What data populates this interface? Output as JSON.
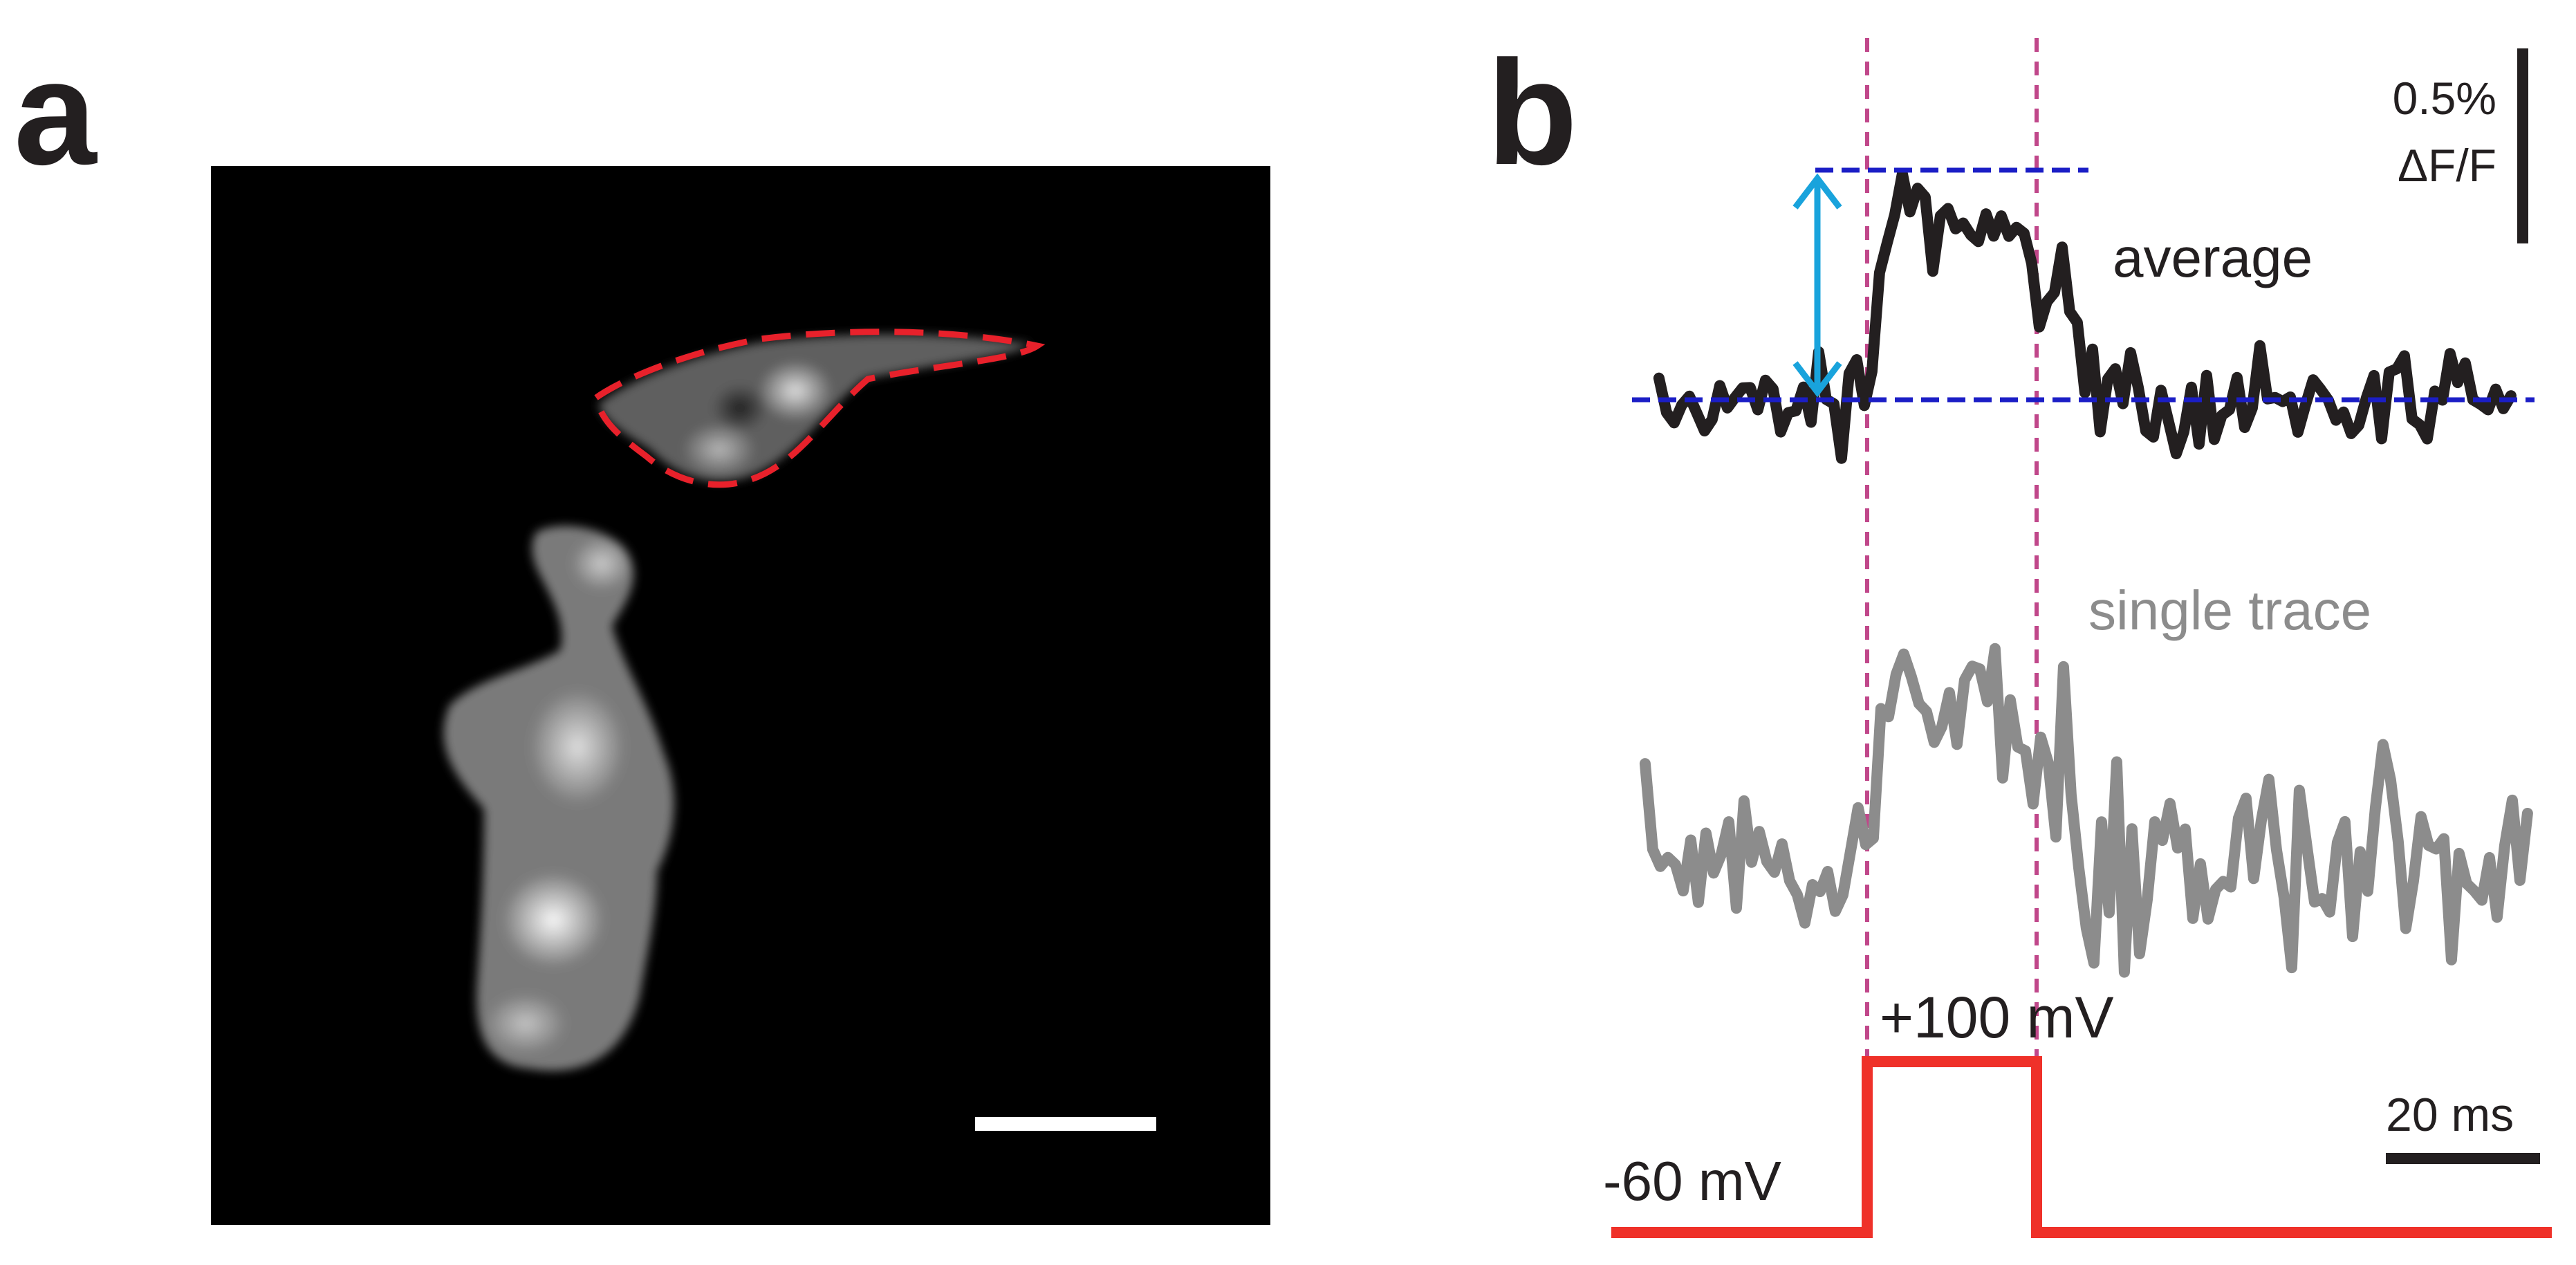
{
  "panel_a": {
    "letter": "a",
    "image": "fluorescence micrograph of cells",
    "roi_color": "#e8212b",
    "scale_bar_color": "#ffffff"
  },
  "panel_b": {
    "letter": "b",
    "scale_y_value": "0.5%",
    "scale_y_unit": "ΔF/F",
    "scale_x_label": "20 ms",
    "average_label": "average",
    "single_label": "single trace",
    "hold_label": "-60 mV",
    "step_label": "+100 mV",
    "colors": {
      "average": "#231f20",
      "single": "#8c8c8c",
      "voltage": "#ef3129",
      "baseline": "#1b1ec6",
      "marker": "#c0478a",
      "arrow": "#19a3dc"
    }
  },
  "chart_data": {
    "type": "line",
    "x_unit": "ms",
    "scale_bar_ms": 20,
    "scale_bar_dff_percent": 0.5,
    "step_start_ms": 27,
    "step_end_ms": 53,
    "hold_mV": -60,
    "step_mV": 100,
    "series": [
      {
        "name": "average",
        "baseline_dff_percent": 0,
        "peak_plateau_dff_percent": 0.46
      },
      {
        "name": "single trace"
      }
    ]
  }
}
